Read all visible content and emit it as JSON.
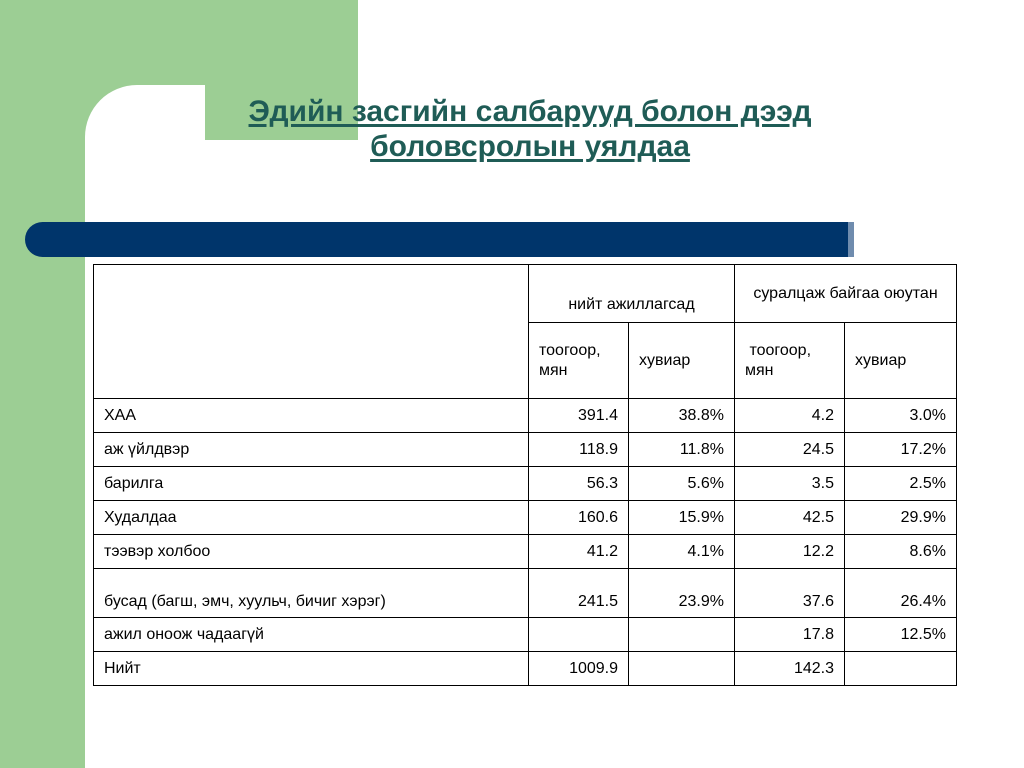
{
  "title": {
    "line1": "Эдийн засгийн салбарууд болон дээд",
    "line2": "боловсролын уялдаа"
  },
  "table": {
    "header": {
      "group1": "нийт ажиллагсад",
      "group2": "суралцаж байгаа оюутан",
      "sub": [
        "тоогоор, мян",
        "хувиар",
        " тоогоор, мян",
        "хувиар"
      ]
    },
    "rows": [
      {
        "label": "ХАА",
        "v1": "391.4",
        "v2": "38.8%",
        "v3": "4.2",
        "v4": "3.0%"
      },
      {
        "label": "аж үйлдвэр",
        "v1": "118.9",
        "v2": "11.8%",
        "v3": "24.5",
        "v4": "17.2%"
      },
      {
        "label": "барилга",
        "v1": "56.3",
        "v2": "5.6%",
        "v3": "3.5",
        "v4": "2.5%"
      },
      {
        "label": "Худалдаа",
        "v1": "160.6",
        "v2": "15.9%",
        "v3": "42.5",
        "v4": "29.9%"
      },
      {
        "label": "тээвэр холбоо",
        "v1": "41.2",
        "v2": "4.1%",
        "v3": "12.2",
        "v4": "8.6%"
      },
      {
        "label": "бусад (багш, эмч, хуульч, бичиг хэрэг)",
        "v1": "241.5",
        "v2": "23.9%",
        "v3": "37.6",
        "v4": "26.4%"
      },
      {
        "label": "ажил оноож чадаагүй",
        "v1": "",
        "v2": "",
        "v3": "17.8",
        "v4": "12.5%"
      },
      {
        "label": "Нийт",
        "v1": "1009.9",
        "v2": "",
        "v3": "142.3",
        "v4": ""
      }
    ]
  },
  "colors": {
    "green": "#9cce94",
    "navy": "#00356b",
    "title": "#1f5c56"
  }
}
